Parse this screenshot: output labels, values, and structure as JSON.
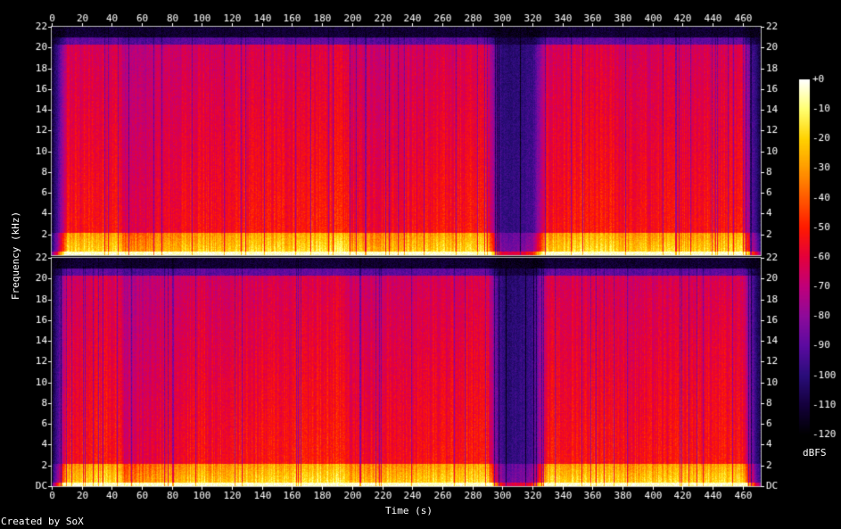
{
  "chart_data": {
    "type": "heatmap",
    "subtype": "spectrogram",
    "xlabel": "Time (s)",
    "ylabel": "Frequency (kHz)",
    "x_ticks": [
      0,
      20,
      40,
      60,
      80,
      100,
      120,
      140,
      160,
      180,
      200,
      220,
      240,
      260,
      280,
      300,
      320,
      340,
      360,
      380,
      400,
      420,
      440,
      460
    ],
    "xlim": [
      0,
      472
    ],
    "channels": [
      {
        "y_ticks": [
          "22",
          "20",
          "18",
          "16",
          "14",
          "12",
          "10",
          "8",
          "6",
          "4",
          "2"
        ],
        "ylim_khz": [
          0,
          22
        ]
      },
      {
        "y_ticks": [
          "22",
          "20",
          "18",
          "16",
          "14",
          "12",
          "10",
          "8",
          "6",
          "4",
          "2",
          "DC"
        ],
        "ylim_khz": [
          0,
          22
        ]
      }
    ],
    "colorbar": {
      "label": "dBFS",
      "ticks": [
        "+0",
        "-10",
        "-20",
        "-30",
        "-40",
        "-50",
        "-60",
        "-70",
        "-80",
        "-90",
        "-100",
        "-110",
        "-120"
      ],
      "range_db": [
        -120,
        0
      ],
      "colors": [
        "#000000",
        "#14003c",
        "#2a0d7a",
        "#5b0aa0",
        "#8d0a9a",
        "#c0007a",
        "#e4003c",
        "#ff1a00",
        "#ff5a00",
        "#ff9a00",
        "#ffd200",
        "#ffff70",
        "#ffffff"
      ]
    },
    "energy_profile": {
      "description_points_time": [
        0,
        5,
        10,
        45,
        48,
        100,
        105,
        195,
        200,
        290,
        295,
        300,
        305,
        320,
        330,
        375,
        380,
        460,
        465,
        472
      ],
      "description_points_level": [
        0.1,
        0.45,
        0.9,
        0.92,
        0.75,
        0.92,
        0.88,
        0.95,
        0.85,
        0.93,
        0.5,
        0.3,
        0.28,
        0.35,
        0.9,
        0.93,
        0.88,
        0.92,
        0.5,
        0.1
      ]
    }
  },
  "footer": {
    "credit": "Created by SoX"
  }
}
